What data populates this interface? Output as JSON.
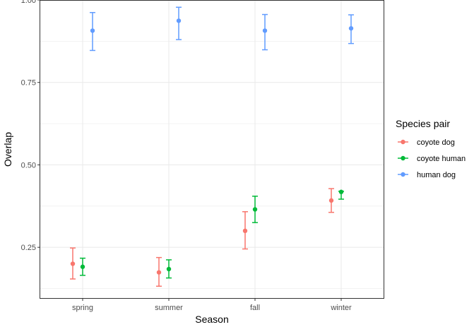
{
  "chart_data": {
    "type": "scatter",
    "subtype": "point-with-errorbars",
    "title": "",
    "xlabel": "Season",
    "ylabel": "Overlap",
    "categories": [
      "spring",
      "summer",
      "fall",
      "winter"
    ],
    "ylim": [
      0.094,
      1.0
    ],
    "yticks": [
      0.25,
      0.5,
      0.75,
      1.0
    ],
    "ytick_labels": [
      "0.25",
      "0.50",
      "0.75",
      "1.00"
    ],
    "grid": true,
    "legend": {
      "title": "Species pair",
      "placement": "right"
    },
    "series": [
      {
        "name": "coyote dog",
        "color": "#F8766D",
        "values": [
          0.2,
          0.174,
          0.3,
          0.392
        ],
        "lower": [
          0.154,
          0.132,
          0.245,
          0.356
        ],
        "upper": [
          0.248,
          0.219,
          0.358,
          0.428
        ]
      },
      {
        "name": "coyote human",
        "color": "#00BA38",
        "values": [
          0.191,
          0.184,
          0.365,
          0.418
        ],
        "lower": [
          0.165,
          0.157,
          0.325,
          0.396
        ],
        "upper": [
          0.217,
          0.212,
          0.405,
          0.42
        ]
      },
      {
        "name": "human dog",
        "color": "#619CFF",
        "values": [
          0.907,
          0.937,
          0.907,
          0.914
        ],
        "lower": [
          0.847,
          0.88,
          0.849,
          0.868
        ],
        "upper": [
          0.962,
          0.978,
          0.956,
          0.955
        ]
      }
    ]
  }
}
